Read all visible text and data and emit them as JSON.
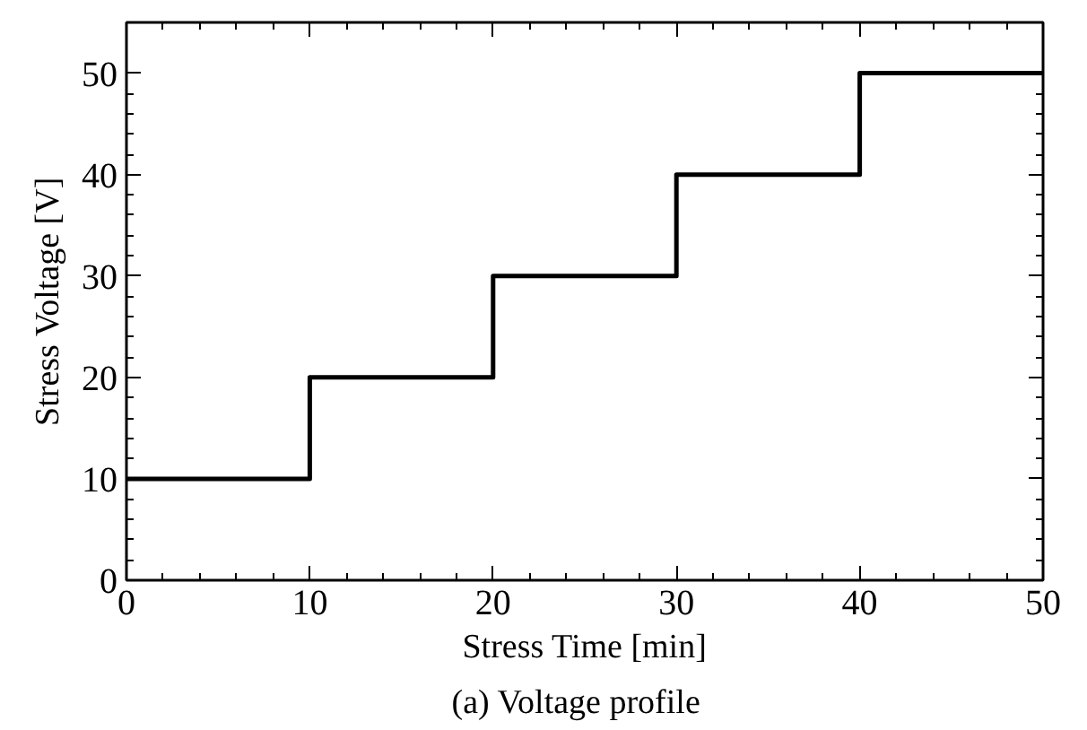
{
  "chart_data": {
    "type": "step",
    "xlabel": "Stress Time [min]",
    "ylabel": "Stress Voltage [V]",
    "annotations": [
      "(a)   Voltage profile"
    ],
    "x": [
      0,
      10,
      20,
      30,
      40,
      50
    ],
    "series": [
      {
        "color": "#000000",
        "values": [
          10,
          20,
          30,
          40,
          50,
          50
        ]
      }
    ],
    "xlim": [
      0,
      50
    ],
    "ylim": [
      0,
      55
    ],
    "xticks": [
      0,
      10,
      20,
      30,
      40,
      50
    ],
    "yticks": [
      0,
      10,
      20,
      30,
      40,
      50
    ],
    "grid": false,
    "marker": "none",
    "line_style": "solid"
  }
}
